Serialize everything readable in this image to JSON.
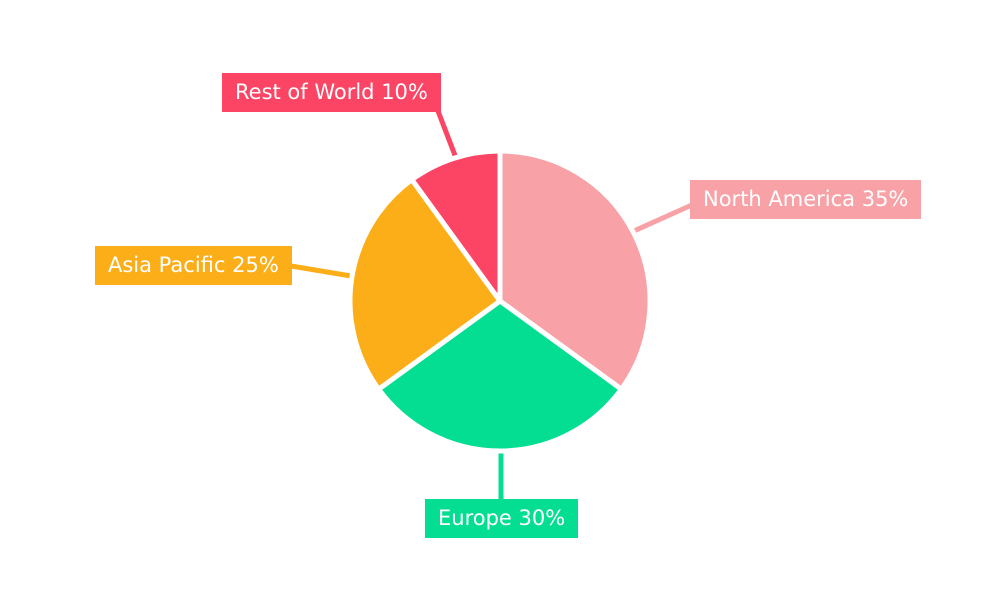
{
  "background_color": "#FFFFFF",
  "chart_data": {
    "type": "pie",
    "title": "",
    "legend_position": "callout-labels",
    "direction": "clockwise",
    "start_angle_deg": 0,
    "label_format": "{label} {value}%",
    "slices": [
      {
        "label": "North America",
        "value": 35,
        "color": "#F8A1A6",
        "display": "North America 35%"
      },
      {
        "label": "Europe",
        "value": 30,
        "color": "#04DE92",
        "display": "Europe 30%"
      },
      {
        "label": "Asia Pacific",
        "value": 25,
        "color": "#FBAE17",
        "display": "Asia Pacific 25%"
      },
      {
        "label": "Rest of World",
        "value": 10,
        "color": "#FC4564",
        "display": "Rest of World 10%"
      }
    ]
  }
}
